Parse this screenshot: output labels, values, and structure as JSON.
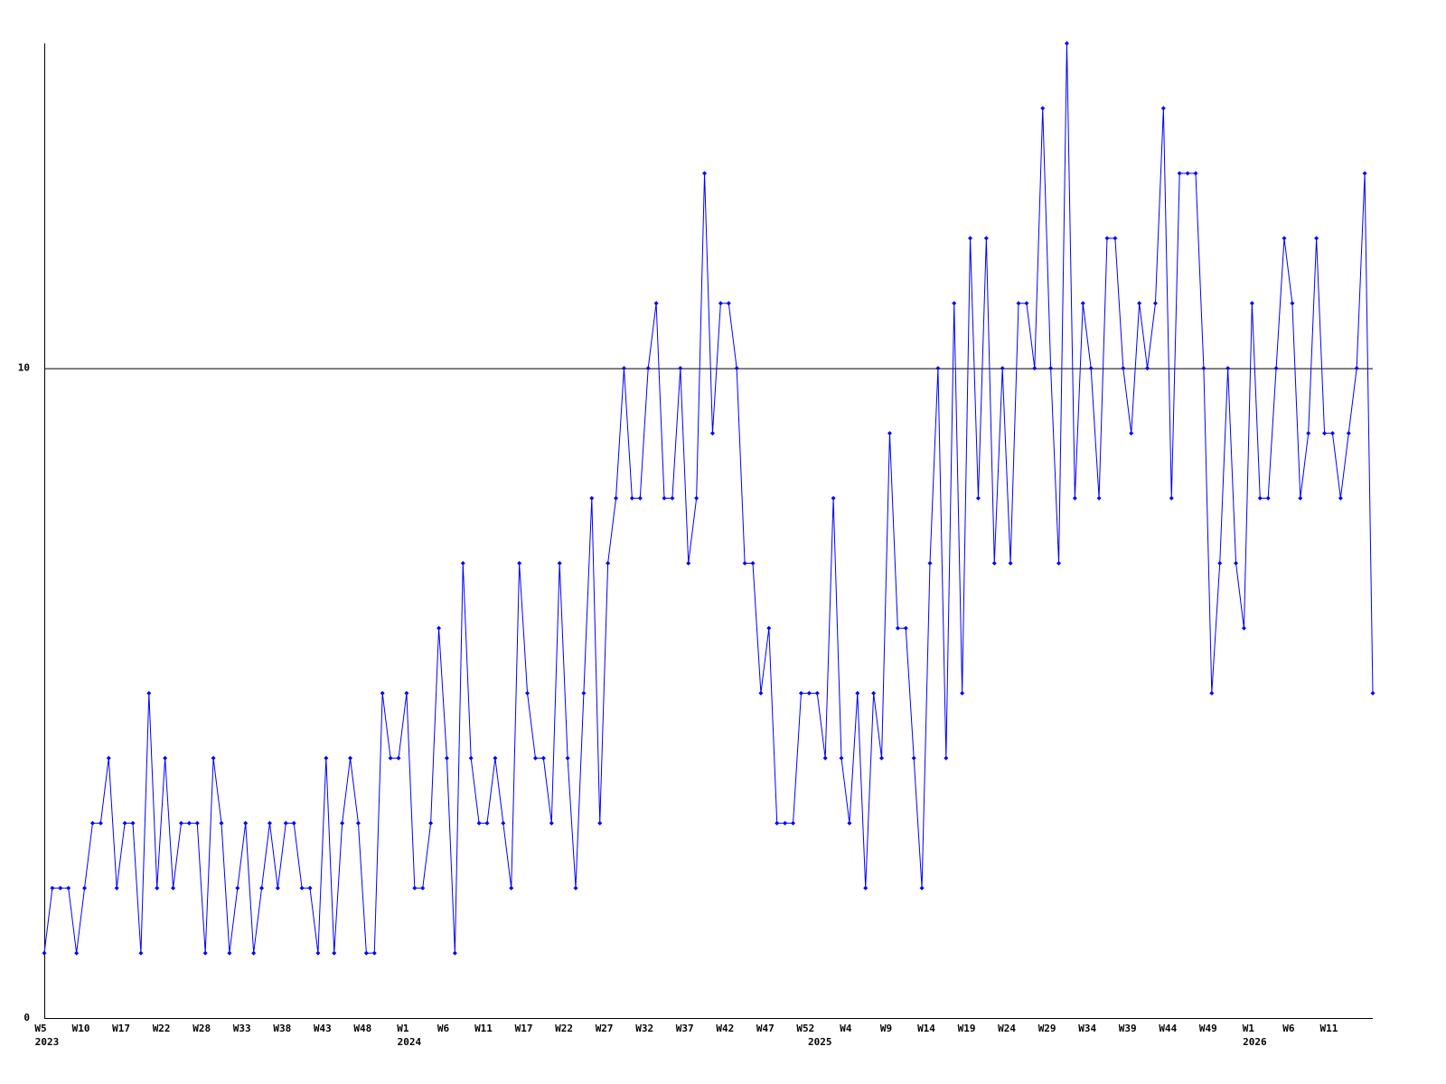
{
  "chart_data": {
    "type": "line",
    "color": "#0000ff",
    "ylim": [
      0,
      15
    ],
    "yticks": [
      0,
      10
    ],
    "grid": true,
    "categories": [
      "W5",
      null,
      null,
      null,
      null,
      "W10",
      null,
      null,
      null,
      null,
      "W17",
      null,
      null,
      null,
      null,
      "W22",
      null,
      null,
      null,
      null,
      "W28",
      null,
      null,
      null,
      null,
      "W33",
      null,
      null,
      null,
      null,
      "W38",
      null,
      null,
      null,
      null,
      "W43",
      null,
      null,
      null,
      null,
      "W48",
      null,
      null,
      null,
      null,
      "W1",
      null,
      null,
      null,
      null,
      "W6",
      null,
      null,
      null,
      null,
      "W11",
      null,
      null,
      null,
      null,
      "W17",
      null,
      null,
      null,
      null,
      "W22",
      null,
      null,
      null,
      null,
      "W27",
      null,
      null,
      null,
      null,
      "W32",
      null,
      null,
      null,
      null,
      "W37",
      null,
      null,
      null,
      null,
      "W42",
      null,
      null,
      null,
      null,
      "W47",
      null,
      null,
      null,
      null,
      "W52",
      null,
      null,
      null,
      null,
      "W4",
      null,
      null,
      null,
      null,
      "W9",
      null,
      null,
      null,
      null,
      "W14",
      null,
      null,
      null,
      null,
      "W19",
      null,
      null,
      null,
      null,
      "W24",
      null,
      null,
      null,
      null,
      "W29",
      null,
      null,
      null,
      null,
      "W34",
      null,
      null,
      null,
      null,
      "W39",
      null,
      null,
      null,
      null,
      "W44",
      null,
      null,
      null,
      null,
      "W49",
      null,
      null,
      null,
      null,
      "W1",
      null,
      null,
      null,
      null,
      "W6",
      null,
      null,
      null,
      null,
      "W11",
      null,
      null,
      null,
      null,
      null
    ],
    "years": [
      "2023",
      null,
      null,
      null,
      null,
      null,
      null,
      null,
      null,
      null,
      null,
      null,
      null,
      null,
      null,
      null,
      null,
      null,
      null,
      null,
      null,
      null,
      null,
      null,
      null,
      null,
      null,
      null,
      null,
      null,
      null,
      null,
      null,
      null,
      null,
      null,
      null,
      null,
      null,
      null,
      null,
      null,
      null,
      null,
      null,
      "2024",
      null,
      null,
      null,
      null,
      null,
      null,
      null,
      null,
      null,
      null,
      null,
      null,
      null,
      null,
      null,
      null,
      null,
      null,
      null,
      null,
      null,
      null,
      null,
      null,
      null,
      null,
      null,
      null,
      null,
      null,
      null,
      null,
      null,
      null,
      null,
      null,
      null,
      null,
      null,
      null,
      null,
      null,
      null,
      null,
      null,
      null,
      null,
      null,
      null,
      null,
      "2025",
      null,
      null,
      null,
      null,
      null,
      null,
      null,
      null,
      null,
      null,
      null,
      null,
      null,
      null,
      null,
      null,
      null,
      null,
      null,
      null,
      null,
      null,
      null,
      null,
      null,
      null,
      null,
      null,
      null,
      null,
      null,
      null,
      null,
      null,
      null,
      null,
      null,
      null,
      null,
      null,
      null,
      null,
      null,
      null,
      null,
      null,
      null,
      null,
      null,
      null,
      null,
      null,
      null,
      "2026",
      null,
      null,
      null,
      null,
      null,
      null,
      null,
      null,
      null,
      null,
      null,
      null,
      null,
      null,
      null
    ],
    "values": [
      1,
      2,
      2,
      2,
      1,
      2,
      3,
      3,
      4,
      2,
      3,
      3,
      1,
      5,
      2,
      4,
      2,
      3,
      3,
      3,
      1,
      4,
      3,
      1,
      2,
      3,
      1,
      2,
      3,
      2,
      3,
      3,
      2,
      2,
      1,
      4,
      1,
      3,
      4,
      3,
      1,
      1,
      5,
      4,
      4,
      5,
      2,
      2,
      3,
      6,
      4,
      1,
      7,
      4,
      3,
      3,
      4,
      3,
      2,
      7,
      5,
      4,
      4,
      3,
      7,
      4,
      2,
      5,
      8,
      3,
      7,
      8,
      10,
      8,
      8,
      10,
      11,
      8,
      8,
      10,
      7,
      8,
      13,
      9,
      11,
      11,
      10,
      7,
      7,
      5,
      6,
      3,
      3,
      3,
      5,
      5,
      5,
      4,
      8,
      4,
      3,
      5,
      2,
      5,
      4,
      9,
      6,
      6,
      4,
      2,
      7,
      10,
      4,
      11,
      5,
      12,
      8,
      12,
      7,
      10,
      7,
      11,
      11,
      10,
      14,
      10,
      7,
      15,
      8,
      11,
      10,
      8,
      12,
      12,
      10,
      9,
      11,
      10,
      11,
      14,
      8,
      13,
      13,
      13,
      10,
      5,
      7,
      10,
      7,
      6,
      11,
      8,
      8,
      10,
      12,
      11,
      8,
      9,
      12,
      9,
      9,
      8,
      9,
      10,
      13,
      5
    ]
  }
}
